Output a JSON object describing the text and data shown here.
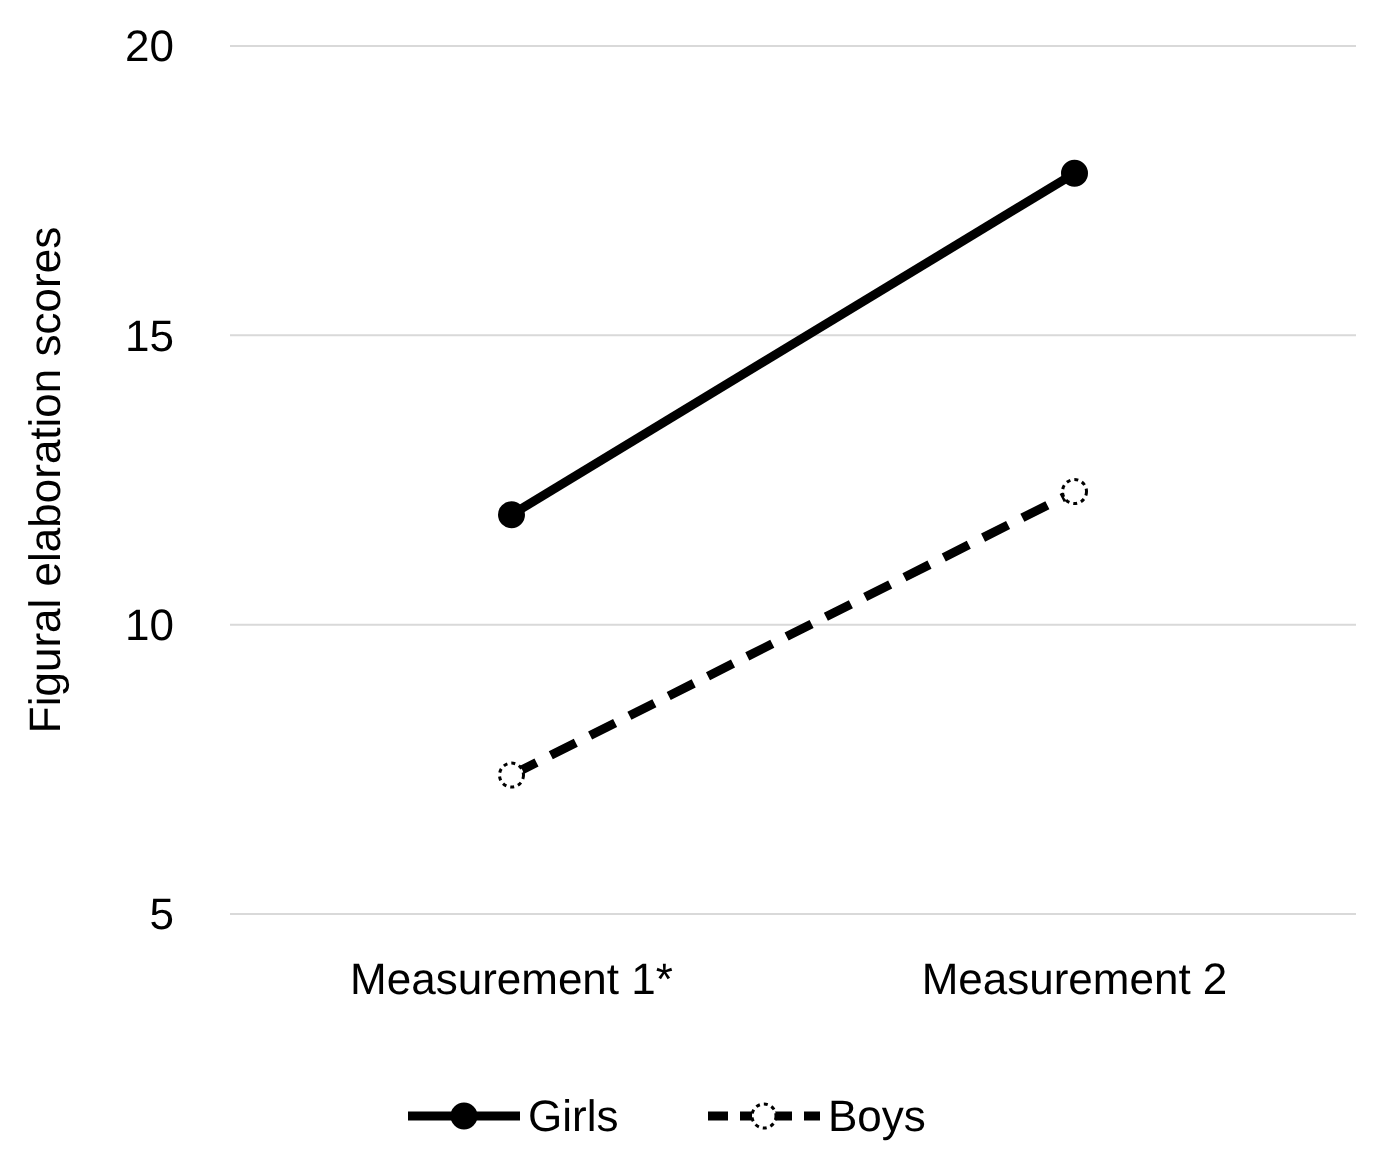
{
  "chart_data": {
    "type": "line",
    "ylabel": "Figural elaboration scores",
    "categories": [
      "Measurement 1*",
      "Measurement 2"
    ],
    "series": [
      {
        "name": "Girls",
        "color": "#000000",
        "values": [
          11.9,
          17.8
        ],
        "line_style": "solid"
      },
      {
        "name": "Boys",
        "color": "#000000",
        "values": [
          7.4,
          12.3
        ],
        "line_style": "dashed"
      }
    ],
    "ylim": [
      5,
      20
    ],
    "yticks": [
      5,
      10,
      15,
      20
    ],
    "grid": "y",
    "legend": "bottom",
    "marker": "circle"
  }
}
